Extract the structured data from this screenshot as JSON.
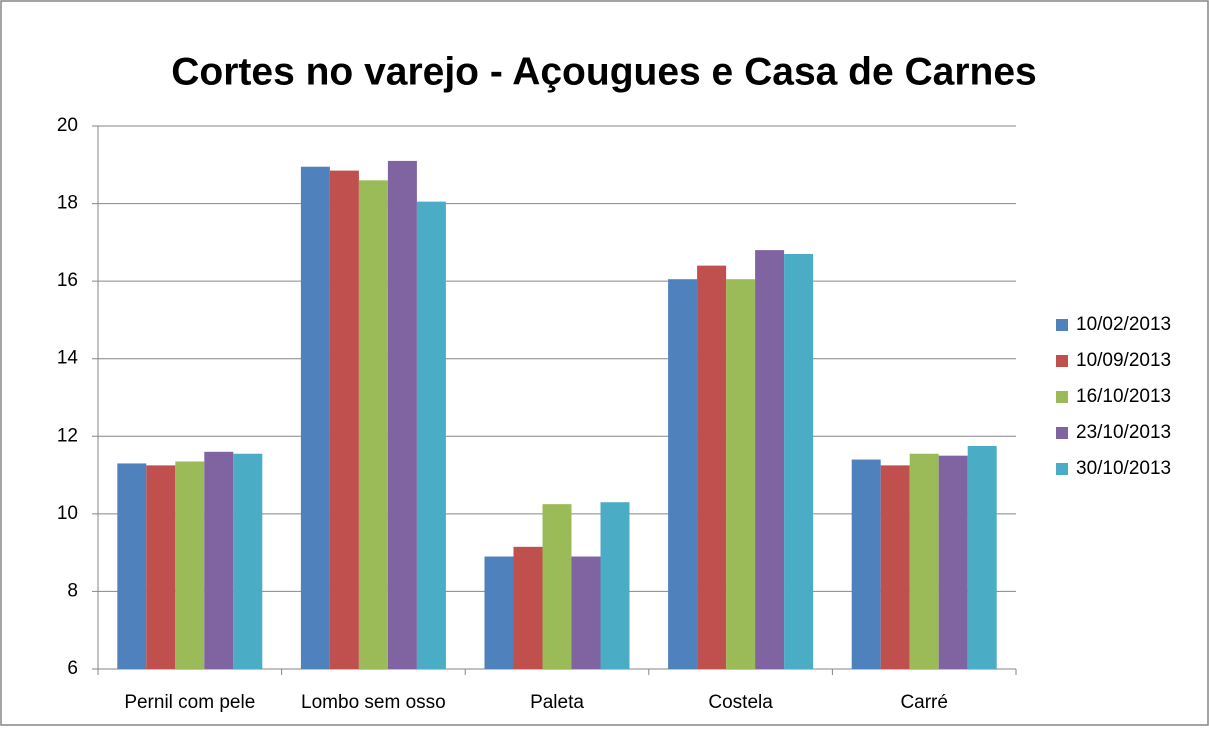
{
  "chart_data": {
    "type": "bar",
    "title": "Cortes no varejo - Açougues e Casa de Carnes",
    "categories": [
      "Pernil com pele",
      "Lombo sem osso",
      "Paleta",
      "Costela",
      "Carré"
    ],
    "series": [
      {
        "name": "10/02/2013",
        "color": "#4f81bd",
        "values": [
          11.3,
          18.95,
          8.9,
          16.05,
          11.4
        ]
      },
      {
        "name": "10/09/2013",
        "color": "#c0504d",
        "values": [
          11.25,
          18.85,
          9.15,
          16.4,
          11.25
        ]
      },
      {
        "name": "16/10/2013",
        "color": "#9bbb59",
        "values": [
          11.35,
          18.6,
          10.25,
          16.05,
          11.55
        ]
      },
      {
        "name": "23/10/2013",
        "color": "#8064a2",
        "values": [
          11.6,
          19.1,
          8.9,
          16.8,
          11.5
        ]
      },
      {
        "name": "30/10/2013",
        "color": "#4bacc6",
        "values": [
          11.55,
          18.05,
          10.3,
          16.7,
          11.75
        ]
      }
    ],
    "ylim": [
      6,
      20
    ],
    "yticks": [
      6,
      8,
      10,
      12,
      14,
      16,
      18,
      20
    ],
    "grid": true,
    "legend": "right"
  }
}
